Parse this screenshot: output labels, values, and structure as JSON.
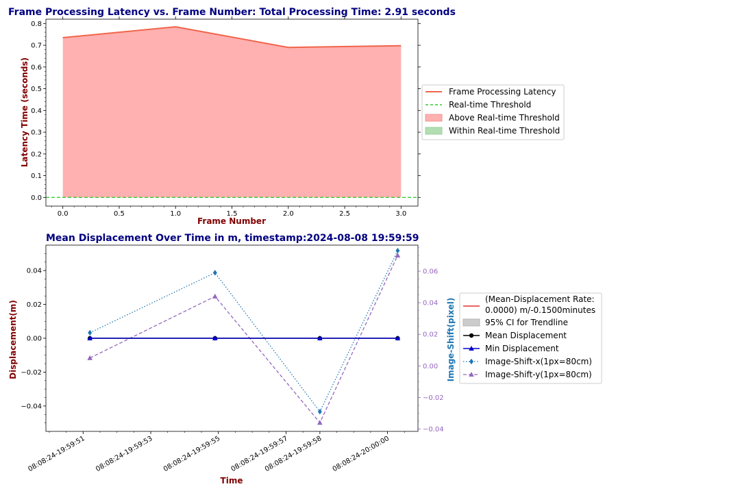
{
  "chart_data": [
    {
      "type": "area",
      "title": "Frame Processing Latency vs. Frame Number: Total Processing Time: 2.91 seconds",
      "xlabel": "Frame Number",
      "ylabel": "Latency Time (seconds)",
      "xlim": [
        -0.15,
        3.15
      ],
      "ylim": [
        -0.04,
        0.82
      ],
      "x_ticks": [
        "0.0",
        "0.5",
        "1.0",
        "1.5",
        "2.0",
        "2.5",
        "3.0"
      ],
      "y_ticks": [
        "0.0",
        "0.1",
        "0.2",
        "0.3",
        "0.4",
        "0.5",
        "0.6",
        "0.7",
        "0.8"
      ],
      "grid": false,
      "legend_position": "right, outside",
      "threshold": 0.0,
      "series": [
        {
          "name": "Frame Processing Latency",
          "x": [
            0,
            1,
            2,
            3
          ],
          "y": [
            0.735,
            0.785,
            0.69,
            0.698
          ],
          "color": "#f0644a"
        }
      ],
      "legend": [
        {
          "label": "Frame Processing Latency",
          "kind": "line",
          "color": "#f0644a"
        },
        {
          "label": "Real-time Threshold",
          "kind": "dashed",
          "color": "#33cc33"
        },
        {
          "label": "Above Real-time Threshold",
          "kind": "patch",
          "color": "#ffb0b0",
          "edge": "#f08a8a"
        },
        {
          "label": "Within Real-time Threshold",
          "kind": "patch",
          "color": "#b3deb3",
          "edge": "#8cc88c"
        }
      ]
    },
    {
      "type": "line",
      "title": "Mean Displacement Over Time in m, timestamp:2024-08-08 19:59:59",
      "xlabel": "Time",
      "ylabel": "Displacement(m)",
      "y2label": "Image-Shift(pixel)",
      "x_ticks": [
        "08:08:24-19:59:51",
        "08:08:24-19:59:53",
        "08:08:24-19:59:55",
        "08:08:24-19:59:57",
        "08:08:24-19:59:58",
        "08:08:24-20:00:00"
      ],
      "ylim": [
        -0.055,
        0.055
      ],
      "y_ticks": [
        "−0.04",
        "−0.02",
        "0.00",
        "0.02",
        "0.04"
      ],
      "y2lim": [
        -0.0415,
        0.0765
      ],
      "y2_ticks": [
        "−0.04",
        "−0.02",
        "0.00",
        "0.02",
        "0.04",
        "0.06"
      ],
      "grid": false,
      "legend_position": "right, outside",
      "x": [
        "19:59:51.2",
        "19:59:54.9",
        "19:59:58.0",
        "20:00:00.3"
      ],
      "series": [
        {
          "name": "Mean Displacement",
          "axis": "left",
          "values": [
            0.0,
            0.0,
            0.0,
            0.0
          ],
          "color": "#000000"
        },
        {
          "name": "Min Displacement",
          "axis": "left",
          "values": [
            0.0,
            0.0,
            0.0,
            0.0
          ],
          "color": "#0000cc"
        },
        {
          "name": "Image-Shift-x(1px=80cm)",
          "axis": "right",
          "values": [
            0.021,
            0.059,
            -0.029,
            0.073
          ],
          "color": "#1f77b4"
        },
        {
          "name": "Image-Shift-y(1px=80cm)",
          "axis": "right",
          "values": [
            0.005,
            0.044,
            -0.036,
            0.07
          ],
          "color": "#9467bd"
        }
      ],
      "legend": [
        {
          "label": "(Mean-Displacement Rate:",
          "label2": " 0.0000) m/-0.1500minutes",
          "kind": "line",
          "color": "#e03030"
        },
        {
          "label": "95% CI for Trendline",
          "kind": "patch",
          "color": "#cccccc",
          "edge": "#aaaaaa"
        },
        {
          "label": "Mean Displacement",
          "kind": "line-circle",
          "color": "#000000"
        },
        {
          "label": "Min Displacement",
          "kind": "line-triangle",
          "color": "#0000cc"
        },
        {
          "label": "Image-Shift-x(1px=80cm)",
          "kind": "dotted-diamond",
          "color": "#1f77b4"
        },
        {
          "label": "Image-Shift-y(1px=80cm)",
          "kind": "dashed-triangle",
          "color": "#9467bd"
        }
      ]
    }
  ]
}
